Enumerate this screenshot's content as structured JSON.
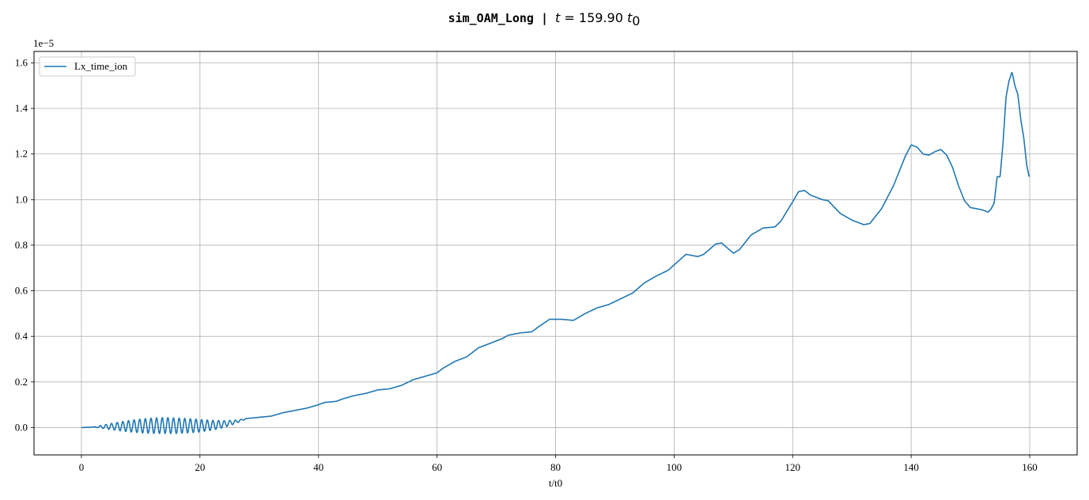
{
  "chart_data": {
    "type": "line",
    "title_prefix": "sim_OAM_Long | ",
    "title_var": "t",
    "title_eq": " = 159.90 ",
    "title_unit": "t",
    "title_unit_sub": "0",
    "xlabel": "t/t0",
    "ylabel": "",
    "offset_text": "1e−5",
    "xlim": [
      -8,
      168
    ],
    "ylim": [
      -0.12,
      1.65
    ],
    "xticks": [
      0,
      20,
      40,
      60,
      80,
      100,
      120,
      140,
      160
    ],
    "yticks": [
      0.0,
      0.2,
      0.4,
      0.6,
      0.8,
      1.0,
      1.2,
      1.4,
      1.6
    ],
    "xtick_labels": [
      "0",
      "20",
      "40",
      "60",
      "80",
      "100",
      "120",
      "140",
      "160"
    ],
    "ytick_labels": [
      "0.0",
      "0.2",
      "0.4",
      "0.6",
      "0.8",
      "1.0",
      "1.2",
      "1.4",
      "1.6"
    ],
    "grid": true,
    "legend_position": "upper-left",
    "series": [
      {
        "name": "Lx_time_ion",
        "color": "#1f77b4",
        "oscillation": {
          "t_start": 2,
          "t_end": 28,
          "period": 0.95,
          "max_amplitude": 0.035,
          "peak_at": 14
        },
        "x": [
          0,
          2,
          4,
          6,
          8,
          10,
          12,
          14,
          16,
          18,
          20,
          22,
          24,
          26,
          28,
          30,
          32,
          34,
          36,
          38,
          40,
          41,
          43,
          44,
          46,
          48,
          50,
          52,
          54,
          56,
          58,
          60,
          61,
          63,
          65,
          67,
          69,
          71,
          72,
          74,
          76,
          77,
          79,
          81,
          83,
          85,
          87,
          89,
          91,
          93,
          95,
          97,
          99,
          102,
          104,
          105,
          107,
          108,
          110,
          111,
          113,
          115,
          117,
          118,
          120,
          121,
          122,
          123,
          125,
          126,
          128,
          130,
          132,
          133,
          135,
          137,
          139,
          140,
          141,
          142,
          143,
          144,
          145,
          146,
          147,
          148,
          149,
          150,
          151,
          152,
          153,
          153.5,
          154,
          154.5,
          155,
          155.5,
          156,
          156.5,
          157,
          157.5,
          158,
          158.5,
          159,
          159.5,
          159.9
        ],
        "y": [
          0.0,
          0.002,
          0.004,
          0.005,
          0.006,
          0.007,
          0.008,
          0.009,
          0.008,
          0.008,
          0.008,
          0.01,
          0.015,
          0.025,
          0.04,
          0.045,
          0.05,
          0.065,
          0.075,
          0.085,
          0.1,
          0.11,
          0.115,
          0.125,
          0.14,
          0.15,
          0.165,
          0.17,
          0.185,
          0.21,
          0.225,
          0.24,
          0.26,
          0.29,
          0.31,
          0.35,
          0.37,
          0.39,
          0.405,
          0.415,
          0.42,
          0.44,
          0.475,
          0.475,
          0.47,
          0.5,
          0.525,
          0.54,
          0.565,
          0.59,
          0.635,
          0.665,
          0.69,
          0.76,
          0.75,
          0.76,
          0.805,
          0.81,
          0.765,
          0.78,
          0.845,
          0.875,
          0.88,
          0.905,
          0.99,
          1.035,
          1.04,
          1.02,
          1.0,
          0.995,
          0.94,
          0.91,
          0.89,
          0.895,
          0.96,
          1.06,
          1.19,
          1.24,
          1.23,
          1.2,
          1.195,
          1.21,
          1.22,
          1.195,
          1.14,
          1.06,
          0.995,
          0.965,
          0.96,
          0.955,
          0.945,
          0.96,
          0.985,
          1.1,
          1.1,
          1.25,
          1.45,
          1.52,
          1.56,
          1.5,
          1.46,
          1.35,
          1.27,
          1.15,
          1.1
        ]
      }
    ]
  }
}
